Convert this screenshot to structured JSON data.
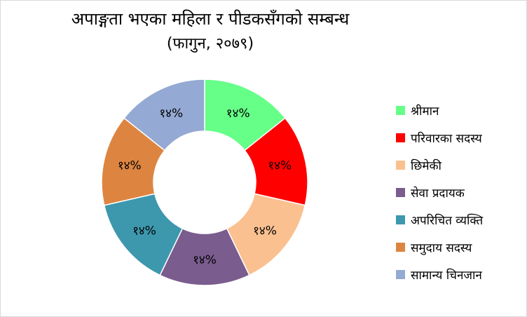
{
  "chart_data": {
    "type": "pie",
    "subtype": "donut",
    "title": "अपाङ्गता भएका महिला र पीडकसँगको सम्बन्ध",
    "subtitle": "(फागुन, २०७९)",
    "legend_position": "right",
    "categories": [
      "श्रीमान",
      "परिवारका सदस्य",
      "छिमेकी",
      "सेवा प्रदायक",
      "अपरिचित व्यक्ति",
      "समुदाय सदस्य",
      "सामान्य चिनजान"
    ],
    "values": [
      14,
      14,
      14,
      14,
      14,
      14,
      14
    ],
    "labels": [
      "१४%",
      "१४%",
      "१४%",
      "१४%",
      "१४%",
      "१४%",
      "१४%"
    ],
    "colors": [
      "#66ff88",
      "#ff0000",
      "#fac090",
      "#7a5c8e",
      "#3d97ad",
      "#dd8540",
      "#94a9d3"
    ]
  }
}
